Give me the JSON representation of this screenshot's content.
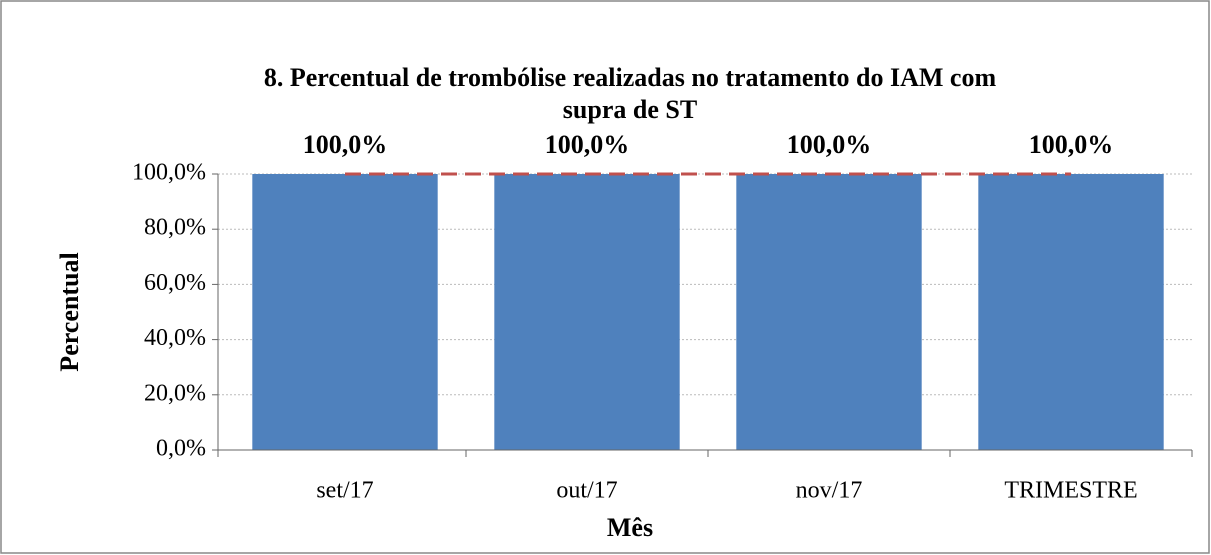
{
  "chart_data": {
    "type": "bar",
    "title": [
      "8. Percentual de trombólise  realizadas no tratamento do IAM com",
      "supra de ST"
    ],
    "x_label": "Mês",
    "y_label": "Percentual",
    "categories": [
      "set/17",
      "out/17",
      "nov/17",
      "TRIMESTRE"
    ],
    "series": [
      {
        "values": [
          100,
          100,
          100,
          100
        ],
        "value_labels": [
          "100,0%",
          "100,0%",
          "100,0%",
          "100,0%"
        ],
        "color": "#4f81bd"
      },
      {
        "type": "line",
        "values": [
          100,
          100,
          100,
          100
        ],
        "color": "#c0504d",
        "dashed": true
      }
    ],
    "ylim": [
      0,
      100
    ],
    "yticks": [
      {
        "value": 0,
        "label": "0,0%"
      },
      {
        "value": 20,
        "label": "20,0%"
      },
      {
        "value": 40,
        "label": "40,0%"
      },
      {
        "value": 60,
        "label": "60,0%"
      },
      {
        "value": 80,
        "label": "80,0%"
      },
      {
        "value": 100,
        "label": "100,0%"
      }
    ],
    "grid": true
  }
}
